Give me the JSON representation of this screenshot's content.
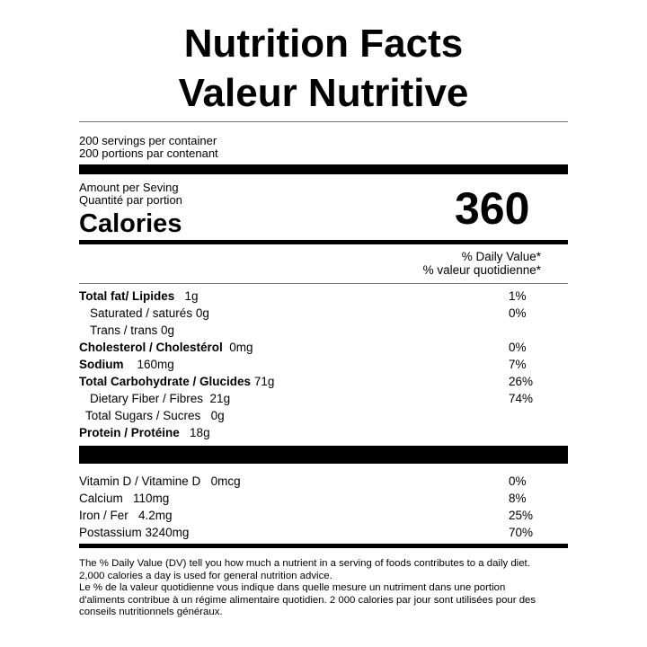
{
  "title_en": "Nutrition Facts",
  "title_fr": "Valeur Nutritive",
  "servings_en": "200 servings per container",
  "servings_fr": "200 portions par contenant",
  "amount_en": "Amount per Seving",
  "amount_fr": "Quantité par portion",
  "calories_label": "Calories",
  "calories_value": "360",
  "dv_header_en": "% Daily Value*",
  "dv_header_fr": "% valeur quotidienne*",
  "nutrients": [
    {
      "label": "Total fat/ Lipides",
      "amount": "1g",
      "dv": "1%"
    },
    {
      "label": "Saturated / saturés 0g",
      "amount": "",
      "dv": "0%"
    },
    {
      "label": "Trans / trans 0g",
      "amount": "",
      "dv": ""
    },
    {
      "label": "Cholesterol / Cholestérol",
      "amount": "0mg",
      "dv": "0%"
    },
    {
      "label": "Sodium",
      "amount": "160mg",
      "dv": "7%"
    },
    {
      "label": "Total Carbohydrate / Glucides",
      "amount": "71g",
      "dv": "26%"
    },
    {
      "label": "Dietary Fiber / Fibres",
      "amount": "21g",
      "dv": "74%"
    },
    {
      "label": "Total Sugars / Sucres",
      "amount": "0g",
      "dv": ""
    },
    {
      "label": "Protein / Protéine",
      "amount": "18g",
      "dv": ""
    }
  ],
  "vitamins": [
    {
      "label": "Vitamin D / Vitamine D",
      "amount": "0mcg",
      "dv": "0%"
    },
    {
      "label": "Calcium",
      "amount": "110mg",
      "dv": "8%"
    },
    {
      "label": "Iron / Fer",
      "amount": "4.2mg",
      "dv": "25%"
    },
    {
      "label": "Postassium",
      "amount": "3240mg",
      "dv": "70%"
    }
  ],
  "footnote": [
    "The % Daily Value (DV) tell you how much a nutrient in a serving of foods contributes to a daily diet.",
    "2,000 calories a day is used for general nutrition advice.",
    "Le % de la valeur quotidienne vous indique dans quelle mesure un nutriment dans une portion",
    "d'aliments contribue à un régime alimentaire quotidien. 2 000 calories par jour sont utilisées pour des",
    "conseils nutritionnels généraux."
  ]
}
